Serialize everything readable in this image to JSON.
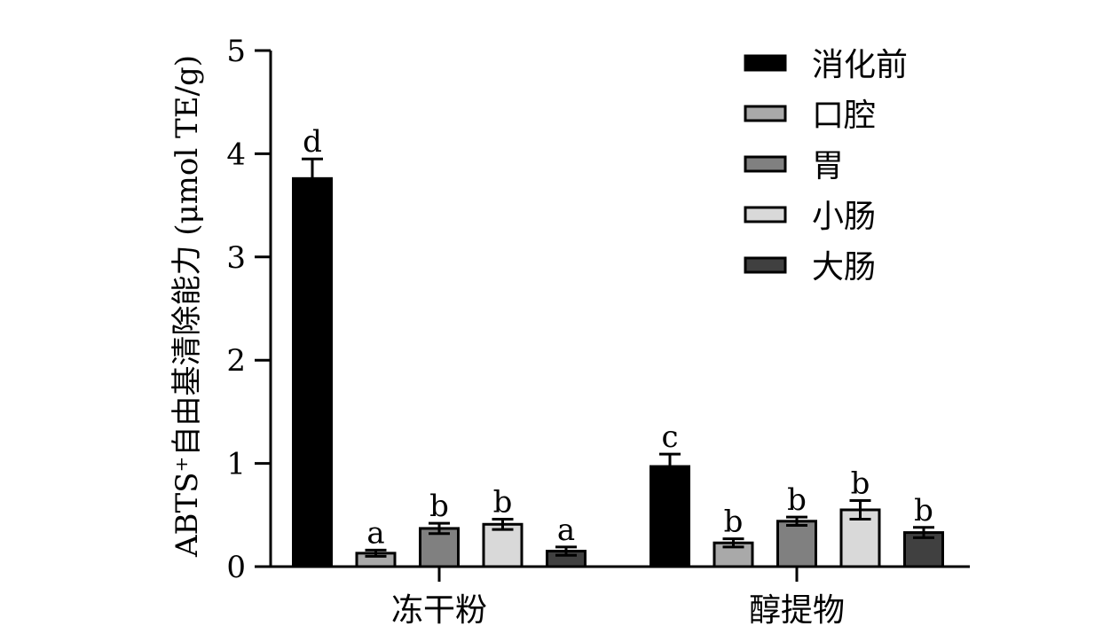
{
  "chart_data": {
    "type": "bar",
    "ylabel": "ABTS⁺自由基清除能力 (μmol TE/g)",
    "xlabel": "",
    "ylim": [
      0,
      5
    ],
    "yticks": [
      "0",
      "1",
      "2",
      "3",
      "4",
      "5"
    ],
    "categories": [
      "冻干粉",
      "醇提物"
    ],
    "legend_position": "top-right",
    "series": [
      {
        "name": "消化前",
        "color": "#000000",
        "values": [
          3.76,
          0.97
        ],
        "errors": [
          0.19,
          0.12
        ],
        "letters": [
          "d",
          "c"
        ]
      },
      {
        "name": "口腔",
        "color": "#a9a9a9",
        "values": [
          0.13,
          0.23
        ],
        "errors": [
          0.03,
          0.04
        ],
        "letters": [
          "a",
          "b"
        ]
      },
      {
        "name": "胃",
        "color": "#808080",
        "values": [
          0.37,
          0.44
        ],
        "errors": [
          0.05,
          0.04
        ],
        "letters": [
          "b",
          "b"
        ]
      },
      {
        "name": "小肠",
        "color": "#d9d9d9",
        "values": [
          0.41,
          0.55
        ],
        "errors": [
          0.05,
          0.09
        ],
        "letters": [
          "b",
          "b"
        ]
      },
      {
        "name": "大肠",
        "color": "#404040",
        "values": [
          0.15,
          0.33
        ],
        "errors": [
          0.04,
          0.05
        ],
        "letters": [
          "a",
          "b"
        ]
      }
    ]
  }
}
